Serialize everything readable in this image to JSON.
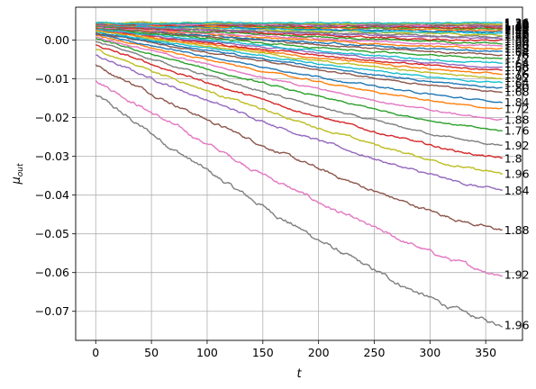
{
  "chart_data": {
    "type": "line",
    "xlabel": "t",
    "ylabel_base": "μ",
    "ylabel_sub": "out",
    "xlim": [
      -18,
      383
    ],
    "ylim": [
      -0.0775,
      0.0085
    ],
    "grid": true,
    "x_ticks": [
      0,
      50,
      100,
      150,
      200,
      250,
      300,
      350
    ],
    "x_tick_labels": [
      "0",
      "50",
      "100",
      "150",
      "200",
      "250",
      "300",
      "350"
    ],
    "y_ticks": [
      0.0,
      -0.01,
      -0.02,
      -0.03,
      -0.04,
      -0.05,
      -0.06,
      -0.07
    ],
    "y_tick_labels": [
      "0.00",
      "−0.01",
      "−0.02",
      "−0.03",
      "−0.04",
      "−0.05",
      "−0.06",
      "−0.07"
    ],
    "t_range": [
      0,
      365
    ],
    "series": [
      {
        "color": "#7f7f7f",
        "start": -0.0142,
        "end": -0.0735,
        "end_label": "1.96"
      },
      {
        "color": "#e377c2",
        "start": -0.0102,
        "end": -0.0605,
        "end_label": "1.92"
      },
      {
        "color": "#8c564b",
        "start": -0.0065,
        "end": -0.049,
        "end_label": "1.88"
      },
      {
        "color": "#9467bd",
        "start": -0.004,
        "end": -0.0388,
        "end_label": "1.84"
      },
      {
        "color": "#bcbd22",
        "start": -0.0024,
        "end": -0.0345,
        "end_label": "1.96"
      },
      {
        "color": "#d62728",
        "start": -0.0013,
        "end": -0.0305,
        "end_label": "1.8"
      },
      {
        "color": "#7f7f7f",
        "start": -0.0003,
        "end": -0.0272,
        "end_label": "1.92"
      },
      {
        "color": "#2ca02c",
        "start": 0.0003,
        "end": -0.0234,
        "end_label": "1.76"
      },
      {
        "color": "#e377c2",
        "start": 0.0008,
        "end": -0.0205,
        "end_label": "1.88"
      },
      {
        "color": "#ff7f0e",
        "start": 0.0012,
        "end": -0.0178,
        "end_label": "1.72"
      },
      {
        "color": "#1f77b4",
        "start": 0.0016,
        "end": -0.016,
        "end_label": "1.84"
      },
      {
        "color": "#8c564b",
        "start": 0.0019,
        "end": -0.0133,
        "end_label": "1.68"
      },
      {
        "color": "#1f77b4",
        "start": 0.0021,
        "end": -0.0123,
        "end_label": "1.80"
      },
      {
        "color": "#17becf",
        "start": 0.0023,
        "end": -0.011,
        "end_label": "1.64"
      },
      {
        "color": "#bcbd22",
        "start": 0.0025,
        "end": -0.0098,
        "end_label": "1.92"
      },
      {
        "color": "#ff7f0e",
        "start": 0.0027,
        "end": -0.0088,
        "end_label": "1.76"
      },
      {
        "color": "#d62728",
        "start": 0.0028,
        "end": -0.0078,
        "end_label": "1.72"
      },
      {
        "color": "#9467bd",
        "start": 0.0029,
        "end": -0.0069,
        "end_label": "1.68"
      },
      {
        "color": "#17becf",
        "start": 0.003,
        "end": -0.006,
        "end_label": "1.64"
      },
      {
        "color": "#2ca02c",
        "start": 0.0031,
        "end": -0.0048,
        "end_label": "1.72"
      },
      {
        "color": "#8c564b",
        "start": 0.0032,
        "end": -0.0038,
        "end_label": "1.76"
      },
      {
        "color": "#1f77b4",
        "start": 0.0033,
        "end": -0.003,
        "end_label": "1.64"
      },
      {
        "color": "#ff7f0e",
        "start": 0.0034,
        "end": -0.0022,
        "end_label": "1.68"
      },
      {
        "color": "#e377c2",
        "start": 0.0035,
        "end": -0.0015,
        "end_label": "1.60"
      },
      {
        "color": "#2ca02c",
        "start": 0.0036,
        "end": -0.0008,
        "end_label": "1.64"
      },
      {
        "color": "#d62728",
        "start": 0.0037,
        "end": -0.0002,
        "end_label": "1.60"
      },
      {
        "color": "#9467bd",
        "start": 0.0038,
        "end": 0.0004,
        "end_label": "1.56"
      },
      {
        "color": "#7f7f7f",
        "start": 0.0039,
        "end": 0.0009,
        "end_label": "1.60"
      },
      {
        "color": "#bcbd22",
        "start": 0.004,
        "end": 0.0014,
        "end_label": "1.52"
      },
      {
        "color": "#17becf",
        "start": 0.004,
        "end": 0.0018,
        "end_label": "1.56"
      },
      {
        "color": "#1f77b4",
        "start": 0.0041,
        "end": 0.0022,
        "end_label": "1.48"
      },
      {
        "color": "#ff7f0e",
        "start": 0.0041,
        "end": 0.0026,
        "end_label": "1.52"
      },
      {
        "color": "#2ca02c",
        "start": 0.0042,
        "end": 0.0029,
        "end_label": "1.44"
      },
      {
        "color": "#d62728",
        "start": 0.0042,
        "end": 0.0032,
        "end_label": "1.48"
      },
      {
        "color": "#9467bd",
        "start": 0.0042,
        "end": 0.0035,
        "end_label": "1.40"
      },
      {
        "color": "#8c564b",
        "start": 0.0043,
        "end": 0.0037,
        "end_label": "1.44"
      },
      {
        "color": "#e377c2",
        "start": 0.0043,
        "end": 0.0039,
        "end_label": "1.36"
      },
      {
        "color": "#7f7f7f",
        "start": 0.0043,
        "end": 0.0041,
        "end_label": "1.40"
      },
      {
        "color": "#bcbd22",
        "start": 0.0044,
        "end": 0.0043,
        "end_label": "1.32"
      },
      {
        "color": "#17becf",
        "start": 0.0044,
        "end": 0.0045,
        "end_label": "1.36"
      }
    ]
  }
}
